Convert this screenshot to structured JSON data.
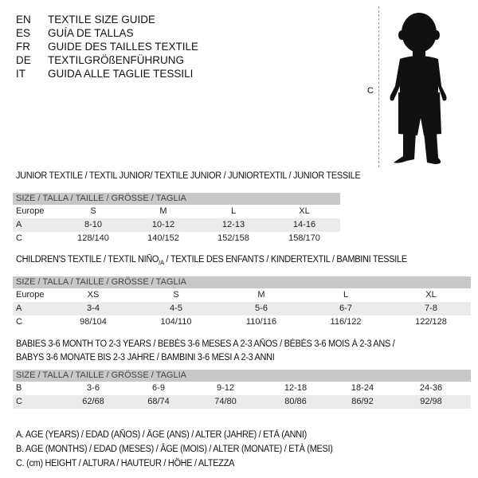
{
  "languages": [
    {
      "code": "EN",
      "title": "TEXTILE SIZE GUIDE"
    },
    {
      "code": "ES",
      "title": "GUÍA DE TALLAS"
    },
    {
      "code": "FR",
      "title": "GUIDE DES TAILLES TEXTILE"
    },
    {
      "code": "DE",
      "title": "TEXTILGRÖßENFÜHRUNG"
    },
    {
      "code": "IT",
      "title": "GUIDA ALLE TAGLIE TESSILI"
    }
  ],
  "figure": {
    "measure_label": "C",
    "icon": "child-silhouette"
  },
  "junior": {
    "title": "JUNIOR TEXTILE / TEXTIL JUNIOR/ TEXTILE JUNIOR / JUNIORTEXTIL / JUNIOR TESSILE",
    "header": "SIZE / TALLA / TAILLE / GRÖSSE / TAGLIA",
    "rows": [
      {
        "label": "Europe",
        "values": [
          "S",
          "M",
          "L",
          "XL"
        ]
      },
      {
        "label": "A",
        "values": [
          "8-10",
          "10-12",
          "12-13",
          "14-16"
        ]
      },
      {
        "label": "C",
        "values": [
          "128/140",
          "140/152",
          "152/158",
          "158/170"
        ]
      }
    ]
  },
  "children": {
    "title_main": "CHILDREN'S TEXTILE / TEXTIL NIÑO",
    "title_sub": "/A",
    "title_rest": " / TEXTILE DES ENFANTS / KINDERTEXTIL / BAMBINI TESSILE",
    "header": "SIZE / TALLA / TAILLE / GRÖSSE / TAGLIA",
    "rows": [
      {
        "label": "Europe",
        "values": [
          "XS",
          "S",
          "M",
          "L",
          "XL"
        ]
      },
      {
        "label": "A",
        "values": [
          "3-4",
          "4-5",
          "5-6",
          "6-7",
          "7-8"
        ]
      },
      {
        "label": "C",
        "values": [
          "98/104",
          "104/110",
          "110/116",
          "116/122",
          "122/128"
        ]
      }
    ]
  },
  "babies": {
    "title_line1": "BABIES 3-6 MONTH TO 2-3 YEARS / BEBÉS 3-6 MESES A 2-3 AÑOS / BÉBÉS 3-6 MOIS À 2-3 ANS /",
    "title_line2": "BABYS 3-6 MONATE BIS 2-3 JAHRE / BAMBINI 3-6 MESI A 2-3 ANNI",
    "header": "SIZE / TALLA / TAILLE / GRÖSSE / TAGLIA",
    "rows": [
      {
        "label": "B",
        "values": [
          "3-6",
          "6-9",
          "9-12",
          "12-18",
          "18-24",
          "24-36"
        ]
      },
      {
        "label": "C",
        "values": [
          "62/68",
          "68/74",
          "74/80",
          "80/86",
          "86/92",
          "92/98"
        ]
      }
    ]
  },
  "legend": [
    "A. AGE (YEARS) / EDAD (AÑOS) / ÂGE (ANS) / ALTER (JAHRE) / ETÀ (ANNI)",
    "B. AGE (MONTHS) / EDAD (MESES) / ÂGE (MOIS) / ALTER (MONATE) / ETÀ (MESI)",
    "C. (cm) HEIGHT / ALTURA / HAUTEUR / HÖHE / ALTEZZA"
  ]
}
